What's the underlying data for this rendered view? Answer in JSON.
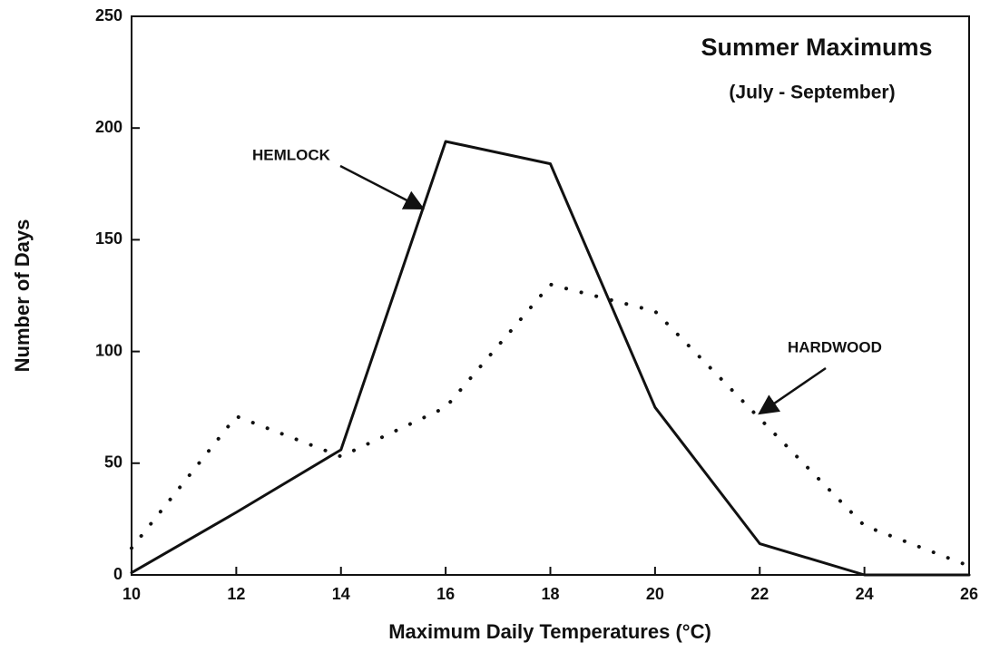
{
  "chart_data": {
    "type": "line",
    "title": "Summer Maximums",
    "subtitle": "(July - September)",
    "x_label": "Maximum Daily Temperatures (°C)",
    "y_label": "Number of Days",
    "x": [
      10,
      12,
      14,
      16,
      18,
      20,
      22,
      24,
      26
    ],
    "series": [
      {
        "name": "HEMLOCK",
        "color": "#111111",
        "style": "solid",
        "values": [
          1,
          28,
          56,
          194,
          184,
          75,
          14,
          0,
          0
        ]
      },
      {
        "name": "HARDWOOD",
        "color": "#111111",
        "style": "dotted",
        "values": [
          12,
          71,
          53,
          75,
          130,
          118,
          70,
          22,
          4
        ]
      }
    ],
    "xlim": [
      10,
      26
    ],
    "xticks": [
      10,
      12,
      14,
      16,
      18,
      20,
      22,
      24,
      26
    ],
    "ylim": [
      0,
      250
    ],
    "yticks": [
      0,
      50,
      100,
      150,
      200,
      250
    ],
    "grid": false
  }
}
